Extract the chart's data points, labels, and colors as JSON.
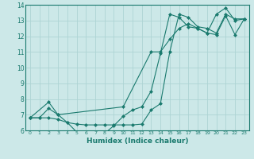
{
  "xlabel": "Humidex (Indice chaleur)",
  "bg_color": "#cce8e8",
  "line_color": "#1a7a6e",
  "grid_color": "#aed4d4",
  "xlim": [
    -0.5,
    23.5
  ],
  "ylim": [
    6,
    14
  ],
  "xticks": [
    0,
    1,
    2,
    3,
    4,
    5,
    6,
    7,
    8,
    9,
    10,
    11,
    12,
    13,
    14,
    15,
    16,
    17,
    18,
    19,
    20,
    21,
    22,
    23
  ],
  "yticks": [
    6,
    7,
    8,
    9,
    10,
    11,
    12,
    13,
    14
  ],
  "line1_x": [
    0,
    1,
    2,
    3,
    4,
    5,
    6,
    7,
    8,
    9,
    10,
    11,
    12,
    13,
    14,
    15,
    16,
    17,
    18,
    19,
    20,
    21,
    22,
    23
  ],
  "line1_y": [
    6.8,
    6.8,
    6.8,
    6.7,
    6.5,
    6.4,
    6.35,
    6.35,
    6.35,
    6.35,
    6.35,
    6.35,
    6.4,
    7.3,
    7.7,
    11.0,
    13.4,
    13.2,
    12.6,
    12.5,
    12.2,
    13.4,
    13.1,
    13.1
  ],
  "line2_x": [
    0,
    1,
    2,
    3,
    4,
    5,
    6,
    7,
    8,
    9,
    10,
    11,
    12,
    13,
    14,
    15,
    16,
    17,
    18,
    19,
    20,
    21,
    22,
    23
  ],
  "line2_y": [
    6.8,
    6.8,
    7.4,
    7.0,
    6.5,
    5.9,
    5.8,
    5.8,
    5.8,
    6.3,
    6.9,
    7.3,
    7.5,
    8.5,
    10.9,
    13.4,
    13.2,
    12.6,
    12.5,
    12.2,
    13.4,
    13.8,
    13.0,
    13.1
  ],
  "line3_x": [
    0,
    2,
    3,
    10,
    13,
    14,
    15,
    16,
    17,
    18,
    19,
    20,
    21,
    22,
    23
  ],
  "line3_y": [
    6.8,
    7.8,
    7.0,
    7.5,
    11.0,
    11.0,
    11.8,
    12.5,
    12.8,
    12.5,
    12.2,
    12.1,
    13.3,
    12.1,
    13.1
  ]
}
